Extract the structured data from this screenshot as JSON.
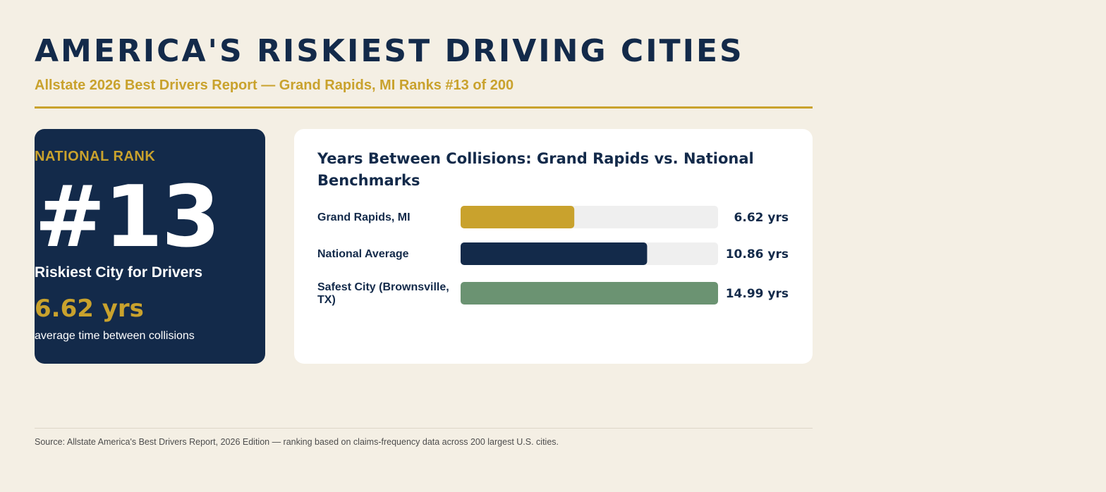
{
  "header": {
    "title": "AMERICA'S RISKIEST DRIVING CITIES",
    "subtitle": "Allstate 2026 Best Drivers Report — Grand Rapids, MI Ranks #13 of 200"
  },
  "rank_card": {
    "label": "NATIONAL RANK",
    "rank": "#13",
    "description": "Riskiest City for Drivers",
    "years": "6.62 yrs",
    "caption": "average time between collisions"
  },
  "colors": {
    "navy": "#132a4a",
    "gold": "#c9a22d",
    "green": "#6b9372",
    "track": "#efefef"
  },
  "chart_data": {
    "type": "bar",
    "orientation": "horizontal",
    "title": "Years Between Collisions: Grand Rapids vs. National Benchmarks",
    "categories": [
      "Grand Rapids, MI",
      "National Average",
      "Safest City (Brownsville, TX)"
    ],
    "category_lines": [
      [
        "Grand Rapids, MI"
      ],
      [
        "National Average"
      ],
      [
        "Safest City (Brownsville,",
        "TX)"
      ]
    ],
    "values": [
      6.62,
      10.86,
      14.99
    ],
    "value_labels": [
      "6.62 yrs",
      "10.86 yrs",
      "14.99 yrs"
    ],
    "bar_colors": [
      "#c9a22d",
      "#132a4a",
      "#6b9372"
    ],
    "xlim": [
      0,
      14.99
    ]
  },
  "footer": {
    "source": "Source: Allstate America's Best Drivers Report, 2026 Edition — ranking based on claims-frequency data across 200 largest U.S. cities."
  }
}
